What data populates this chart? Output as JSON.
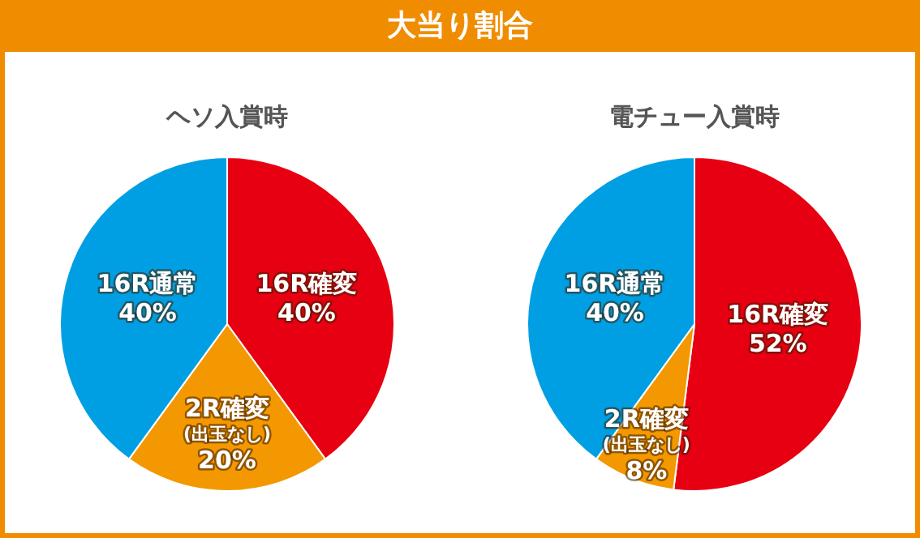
{
  "chart_data": [
    {
      "type": "other",
      "title": "大当り割合"
    },
    {
      "type": "pie",
      "title": "ヘソ入賞時",
      "categories": [
        "16R確変",
        "2R確変(出玉なし)",
        "16R通常"
      ],
      "values": [
        40,
        20,
        40
      ],
      "value_labels": [
        "40%",
        "20%",
        "40%"
      ],
      "colors": [
        "#e60012",
        "#f39800",
        "#009fe3"
      ]
    },
    {
      "type": "pie",
      "title": "電チュー入賞時",
      "categories": [
        "16R確変",
        "2R確変(出玉なし)",
        "16R通常"
      ],
      "values": [
        52,
        8,
        40
      ],
      "value_labels": [
        "52%",
        "8%",
        "40%"
      ],
      "colors": [
        "#e60012",
        "#f39800",
        "#009fe3"
      ]
    }
  ]
}
